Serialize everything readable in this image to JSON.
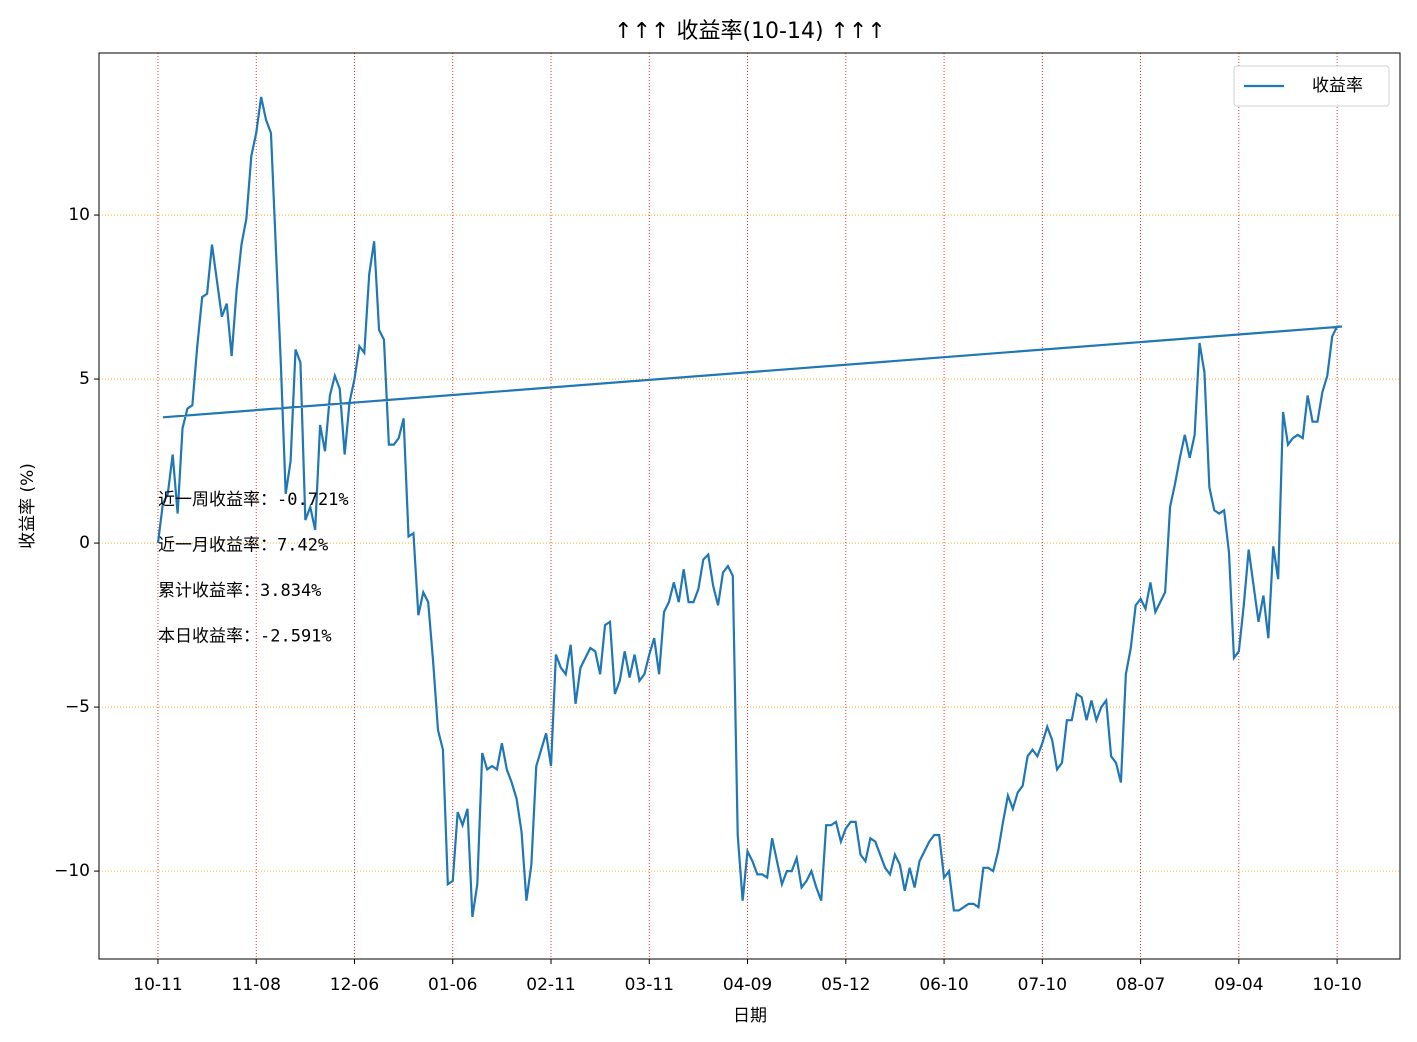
{
  "chart_data": {
    "type": "line",
    "title": "↑↑↑ 收益率(10-14) ↑↑↑",
    "x_label": "日期",
    "y_label": "收益率 (%)",
    "x": [
      0,
      1,
      2,
      3,
      4,
      5,
      6,
      7,
      8,
      9,
      10,
      11,
      12,
      13,
      14,
      15,
      16,
      17,
      18,
      19,
      20,
      21,
      22,
      23,
      24,
      25,
      26,
      27,
      28,
      29,
      30,
      31,
      32,
      33,
      34,
      35,
      36,
      37,
      38,
      39,
      40,
      41,
      42,
      43,
      44,
      45,
      46,
      47,
      48,
      49,
      50,
      51,
      52,
      53,
      54,
      55,
      56,
      57,
      58,
      59,
      60,
      61,
      62,
      63,
      64,
      65,
      66,
      67,
      68,
      69,
      70,
      71,
      72,
      73,
      74,
      75,
      76,
      77,
      78,
      79,
      80,
      81,
      82,
      83,
      84,
      85,
      86,
      87,
      88,
      89,
      90,
      91,
      92,
      93,
      94,
      95,
      96,
      97,
      98,
      99,
      100,
      101,
      102,
      103,
      104,
      105,
      106,
      107,
      108,
      109,
      110,
      111,
      112,
      113,
      114,
      115,
      116,
      117,
      118,
      119,
      120,
      121,
      122,
      123,
      124,
      125,
      126,
      127,
      128,
      129,
      130,
      131,
      132,
      133,
      134,
      135,
      136,
      137,
      138,
      139,
      140,
      141,
      142,
      143,
      144,
      145,
      146,
      147,
      148,
      149,
      150,
      151,
      152,
      153,
      154,
      155,
      156,
      157,
      158,
      159,
      160,
      161,
      162,
      163,
      164,
      165,
      166,
      167,
      168,
      169,
      170,
      171,
      172,
      173,
      174,
      175,
      176,
      177,
      178,
      179,
      180,
      181,
      182,
      183,
      184,
      185,
      186,
      187,
      188,
      189,
      190,
      191,
      192,
      193,
      194,
      195,
      196,
      197,
      198,
      199,
      200,
      201,
      202,
      203,
      204,
      205,
      206,
      207,
      208,
      209,
      210,
      211,
      212,
      213,
      214,
      215,
      216,
      217,
      218,
      219,
      220,
      221,
      222,
      223,
      224,
      225,
      226,
      227,
      228,
      229,
      230,
      231,
      232,
      233,
      234,
      235,
      236,
      237,
      238,
      239,
      240,
      241,
      1
    ],
    "series": [
      {
        "name": "收益率",
        "color": "#1f77b4",
        "values": [
          0,
          1.2,
          1.5,
          2.7,
          0.9,
          3.5,
          4.1,
          4.2,
          6.0,
          7.5,
          7.6,
          9.1,
          8.0,
          6.9,
          7.3,
          5.7,
          7.7,
          9.1,
          9.9,
          11.8,
          12.5,
          13.6,
          12.9,
          12.5,
          9.0,
          5.5,
          1.5,
          2.5,
          5.9,
          5.5,
          0.7,
          1.1,
          0.4,
          3.6,
          2.8,
          4.5,
          5.1,
          4.7,
          2.7,
          4.3,
          5.0,
          6.0,
          5.8,
          8.2,
          9.2,
          6.5,
          6.2,
          3.0,
          3.0,
          3.2,
          3.8,
          0.2,
          0.3,
          -2.2,
          -1.5,
          -1.8,
          -3.6,
          -5.7,
          -6.3,
          -10.4,
          -10.3,
          -8.2,
          -8.6,
          -8.1,
          -11.4,
          -10.4,
          -6.4,
          -6.9,
          -6.8,
          -6.9,
          -6.1,
          -6.9,
          -7.3,
          -7.8,
          -8.8,
          -10.9,
          -9.8,
          -6.8,
          -6.3,
          -5.8,
          -6.8,
          -3.4,
          -3.8,
          -4.0,
          -3.1,
          -4.9,
          -3.8,
          -3.5,
          -3.2,
          -3.3,
          -4.0,
          -2.5,
          -2.4,
          -4.6,
          -4.2,
          -3.3,
          -4.1,
          -3.4,
          -4.2,
          -4.0,
          -3.4,
          -2.9,
          -4.0,
          -2.1,
          -1.8,
          -1.2,
          -1.8,
          -0.8,
          -1.8,
          -1.8,
          -1.4,
          -0.5,
          -0.35,
          -1.3,
          -1.9,
          -0.9,
          -0.7,
          -1.0,
          -8.9,
          -10.9,
          -9.4,
          -9.7,
          -10.1,
          -10.1,
          -10.2,
          -9.0,
          -9.7,
          -10.4,
          -10.0,
          -10.0,
          -9.6,
          -10.5,
          -10.3,
          -10.0,
          -10.5,
          -10.9,
          -8.6,
          -8.6,
          -8.5,
          -9.1,
          -8.7,
          -8.5,
          -8.5,
          -9.5,
          -9.7,
          -9.0,
          -9.1,
          -9.5,
          -9.9,
          -10.1,
          -9.5,
          -9.8,
          -10.6,
          -9.9,
          -10.5,
          -9.7,
          -9.4,
          -9.1,
          -8.9,
          -8.9,
          -10.2,
          -10.0,
          -11.2,
          -11.2,
          -11.1,
          -11.0,
          -11.0,
          -11.1,
          -9.9,
          -9.9,
          -10.0,
          -9.4,
          -8.5,
          -7.7,
          -8.1,
          -7.6,
          -7.4,
          -6.5,
          -6.3,
          -6.5,
          -6.1,
          -5.6,
          -6.0,
          -6.9,
          -6.7,
          -5.4,
          -5.4,
          -4.6,
          -4.7,
          -5.4,
          -4.8,
          -5.4,
          -5.0,
          -4.8,
          -6.5,
          -6.7,
          -7.3,
          -4.0,
          -3.2,
          -1.9,
          -1.7,
          -2.0,
          -1.2,
          -2.1,
          -1.8,
          -1.5,
          1.1,
          1.8,
          2.6,
          3.3,
          2.6,
          3.3,
          6.1,
          5.2,
          1.7,
          1.0,
          0.9,
          1.0,
          -0.3,
          -3.5,
          -3.3,
          -1.9,
          -0.2,
          -1.3,
          -2.4,
          -1.6,
          -2.9,
          -0.1,
          -1.1,
          4.0,
          3.0,
          3.2,
          3.3,
          3.2,
          4.5,
          3.7,
          3.7,
          4.6,
          5.1,
          6.3,
          6.6,
          6.6,
          3.834
        ]
      }
    ],
    "xlim": [
      -12,
      252.8
    ],
    "xticks": [
      {
        "value": 0,
        "label": "10-11"
      },
      {
        "value": 20,
        "label": "11-08"
      },
      {
        "value": 40,
        "label": "12-06"
      },
      {
        "value": 60,
        "label": "01-06"
      },
      {
        "value": 80,
        "label": "02-11"
      },
      {
        "value": 100,
        "label": "03-11"
      },
      {
        "value": 120,
        "label": "04-09"
      },
      {
        "value": 140,
        "label": "05-12"
      },
      {
        "value": 160,
        "label": "06-10"
      },
      {
        "value": 180,
        "label": "07-10"
      },
      {
        "value": 200,
        "label": "08-07"
      },
      {
        "value": 220,
        "label": "09-04"
      },
      {
        "value": 240,
        "label": "10-10"
      }
    ],
    "ylim": [
      -12.68,
      14.94
    ],
    "yticks": [
      {
        "value": -10,
        "label": "−10"
      },
      {
        "value": -5,
        "label": "−5"
      },
      0,
      5,
      10
    ],
    "grid": true,
    "legend": "upper right",
    "annotations": [
      {
        "text": "近一周收益率：-0.721%",
        "color": "green"
      },
      {
        "text": "近一月收益率：7.42%",
        "color": "red"
      },
      {
        "text": "累计收益率：3.834%",
        "color": "red"
      },
      {
        "text": "本日收益率：-2.591%",
        "color": "green"
      }
    ]
  }
}
